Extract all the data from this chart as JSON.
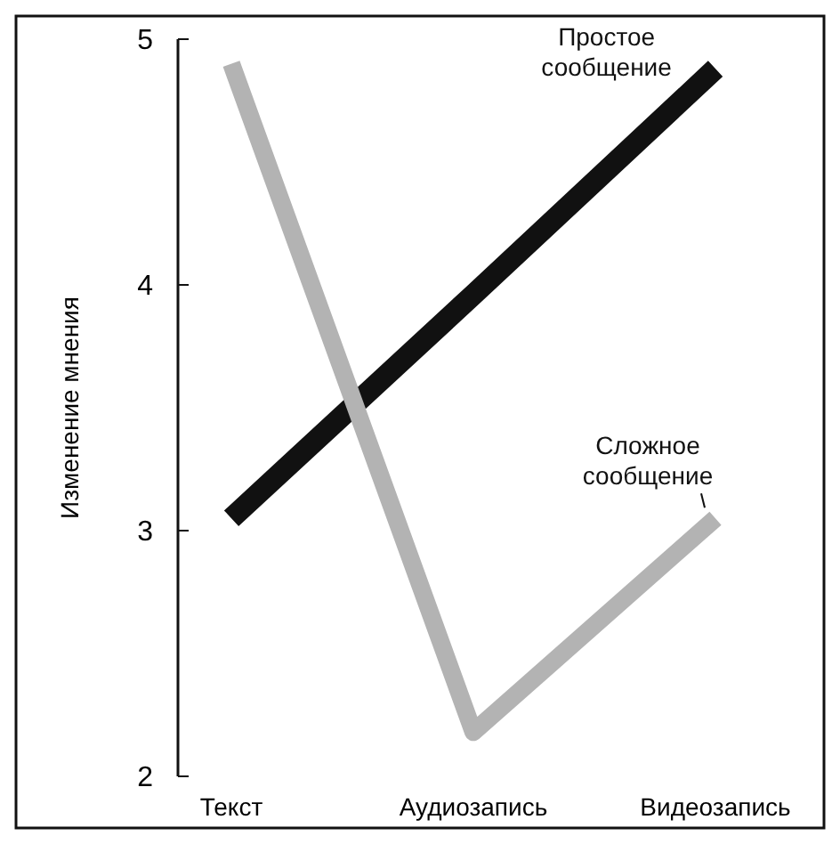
{
  "chart_data": {
    "type": "line",
    "ylabel": "Изменение мнения",
    "categories": [
      "Текст",
      "Аудиозапись",
      "Видеозапись"
    ],
    "ylim": [
      2,
      5
    ],
    "yticks": [
      2,
      3,
      4,
      5
    ],
    "grid": false,
    "line_style": "solid",
    "series": [
      {
        "name": "Простое сообщение",
        "color": "#111111",
        "values": [
          3.05,
          3.96,
          4.88
        ]
      },
      {
        "name": "Сложное сообщение",
        "color": "#b3b3b3",
        "values": [
          4.9,
          2.18,
          3.05
        ]
      }
    ]
  }
}
